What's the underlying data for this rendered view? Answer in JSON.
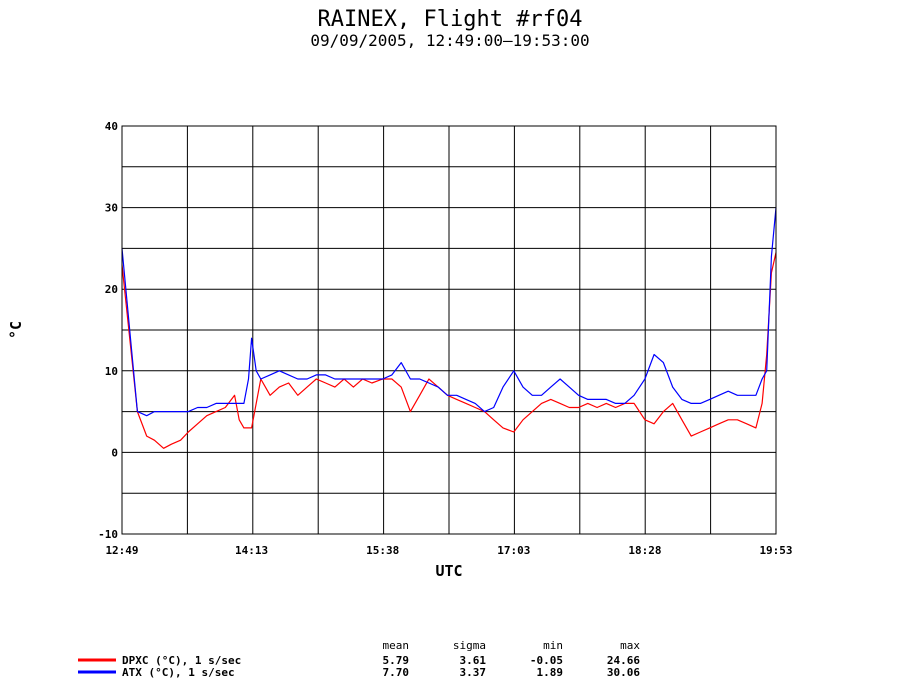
{
  "chart_data": {
    "type": "line",
    "title": "RAINEX, Flight #rf04",
    "subtitle": "09/09/2005, 12:49:00–19:53:00",
    "xlabel": "UTC",
    "ylabel": "°C",
    "ylim": [
      -10,
      40
    ],
    "yticks": [
      -10,
      0,
      10,
      20,
      30,
      40
    ],
    "xticks": [
      "12:49",
      "14:13",
      "15:38",
      "17:03",
      "18:28",
      "19:53"
    ],
    "xlim": [
      "12:49",
      "19:53"
    ],
    "grid": true,
    "series": [
      {
        "name": "DPXC (°C), 1 s/sec",
        "color": "#ff0000",
        "x": [
          "12:49",
          "12:54",
          "12:59",
          "13:05",
          "13:10",
          "13:16",
          "13:21",
          "13:27",
          "13:32",
          "13:38",
          "13:44",
          "13:50",
          "13:56",
          "14:02",
          "14:05",
          "14:08",
          "14:13",
          "14:19",
          "14:25",
          "14:31",
          "14:37",
          "14:43",
          "14:49",
          "14:55",
          "15:01",
          "15:07",
          "15:13",
          "15:19",
          "15:25",
          "15:31",
          "15:38",
          "15:44",
          "15:50",
          "15:56",
          "16:02",
          "16:08",
          "16:14",
          "16:20",
          "16:26",
          "16:32",
          "16:38",
          "16:44",
          "16:50",
          "16:56",
          "17:03",
          "17:09",
          "17:15",
          "17:21",
          "17:27",
          "17:33",
          "17:39",
          "17:45",
          "17:51",
          "17:57",
          "18:03",
          "18:09",
          "18:15",
          "18:21",
          "18:28",
          "18:34",
          "18:40",
          "18:46",
          "18:52",
          "18:58",
          "19:04",
          "19:10",
          "19:16",
          "19:22",
          "19:28",
          "19:34",
          "19:40",
          "19:44",
          "19:47",
          "19:50",
          "19:53"
        ],
        "y": [
          23,
          14,
          5,
          2,
          1.5,
          0.5,
          1,
          1.5,
          2.5,
          3.5,
          4.5,
          5,
          5.5,
          7,
          4,
          3,
          3,
          9,
          7,
          8,
          8.5,
          7,
          8,
          9,
          8.5,
          8,
          9,
          8,
          9,
          8.5,
          9,
          9,
          8,
          5,
          7,
          9,
          8,
          7,
          6.5,
          6,
          5.5,
          5,
          4,
          3,
          2.5,
          4,
          5,
          6,
          6.5,
          6,
          5.5,
          5.5,
          6,
          5.5,
          6,
          5.5,
          6,
          6,
          4,
          3.5,
          5,
          6,
          4,
          2,
          2.5,
          3,
          3.5,
          4,
          4,
          3.5,
          3,
          6,
          12,
          22,
          24.5
        ]
      },
      {
        "name": "ATX (°C), 1 s/sec",
        "color": "#0000ff",
        "x": [
          "12:49",
          "12:54",
          "12:59",
          "13:05",
          "13:10",
          "13:16",
          "13:21",
          "13:27",
          "13:32",
          "13:38",
          "13:44",
          "13:50",
          "13:56",
          "14:02",
          "14:08",
          "14:11",
          "14:13",
          "14:16",
          "14:19",
          "14:25",
          "14:31",
          "14:37",
          "14:43",
          "14:49",
          "14:55",
          "15:01",
          "15:07",
          "15:13",
          "15:19",
          "15:25",
          "15:31",
          "15:38",
          "15:44",
          "15:50",
          "15:56",
          "16:02",
          "16:08",
          "16:14",
          "16:20",
          "16:26",
          "16:32",
          "16:38",
          "16:44",
          "16:50",
          "16:56",
          "17:03",
          "17:09",
          "17:15",
          "17:21",
          "17:27",
          "17:33",
          "17:39",
          "17:45",
          "17:51",
          "17:57",
          "18:03",
          "18:09",
          "18:15",
          "18:21",
          "18:28",
          "18:34",
          "18:40",
          "18:46",
          "18:52",
          "18:58",
          "19:04",
          "19:10",
          "19:16",
          "19:22",
          "19:28",
          "19:34",
          "19:40",
          "19:44",
          "19:47",
          "19:50",
          "19:53"
        ],
        "y": [
          25,
          15,
          5,
          4.5,
          5,
          5,
          5,
          5,
          5,
          5.5,
          5.5,
          6,
          6,
          6,
          6,
          9,
          14,
          10,
          9,
          9.5,
          10,
          9.5,
          9,
          9,
          9.5,
          9.5,
          9,
          9,
          9,
          9,
          9,
          9,
          9.5,
          11,
          9,
          9,
          8.5,
          8,
          7,
          7,
          6.5,
          6,
          5,
          5.5,
          8,
          10,
          8,
          7,
          7,
          8,
          9,
          8,
          7,
          6.5,
          6.5,
          6.5,
          6,
          6,
          7,
          9,
          12,
          11,
          8,
          6.5,
          6,
          6,
          6.5,
          7,
          7.5,
          7,
          7,
          7,
          9,
          10,
          24,
          30
        ]
      }
    ],
    "stats": {
      "headers": [
        "mean",
        "sigma",
        "min",
        "max"
      ],
      "rows": [
        {
          "label": "DPXC (°C), 1 s/sec",
          "values": [
            "5.79",
            "3.61",
            "-0.05",
            "24.66"
          ],
          "color": "#ff0000"
        },
        {
          "label": "ATX (°C), 1 s/sec",
          "values": [
            "7.70",
            "3.37",
            "1.89",
            "30.06"
          ],
          "color": "#0000ff"
        }
      ]
    }
  }
}
